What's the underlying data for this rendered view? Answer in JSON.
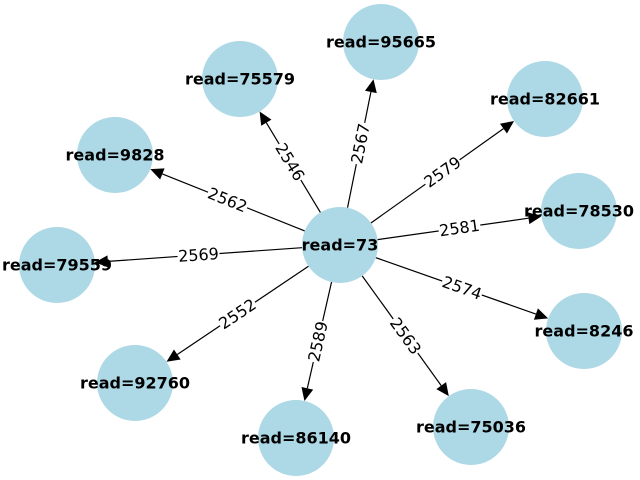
{
  "center": {
    "label": "read=73"
  },
  "neighbors": [
    {
      "label": "read=95665",
      "weight": "2567"
    },
    {
      "label": "read=75579",
      "weight": "2546"
    },
    {
      "label": "read=82661",
      "weight": "2579"
    },
    {
      "label": "read=9828",
      "weight": "2562"
    },
    {
      "label": "read=78530",
      "weight": "2581"
    },
    {
      "label": "read=79559",
      "weight": "2569"
    },
    {
      "label": "read=8246",
      "weight": "2574"
    },
    {
      "label": "read=92760",
      "weight": "2552"
    },
    {
      "label": "read=75036",
      "weight": "2563"
    },
    {
      "label": "read=86140",
      "weight": "2589"
    }
  ],
  "colors": {
    "node_fill": "#add8e6",
    "edge": "#000000",
    "background": "#ffffff"
  }
}
